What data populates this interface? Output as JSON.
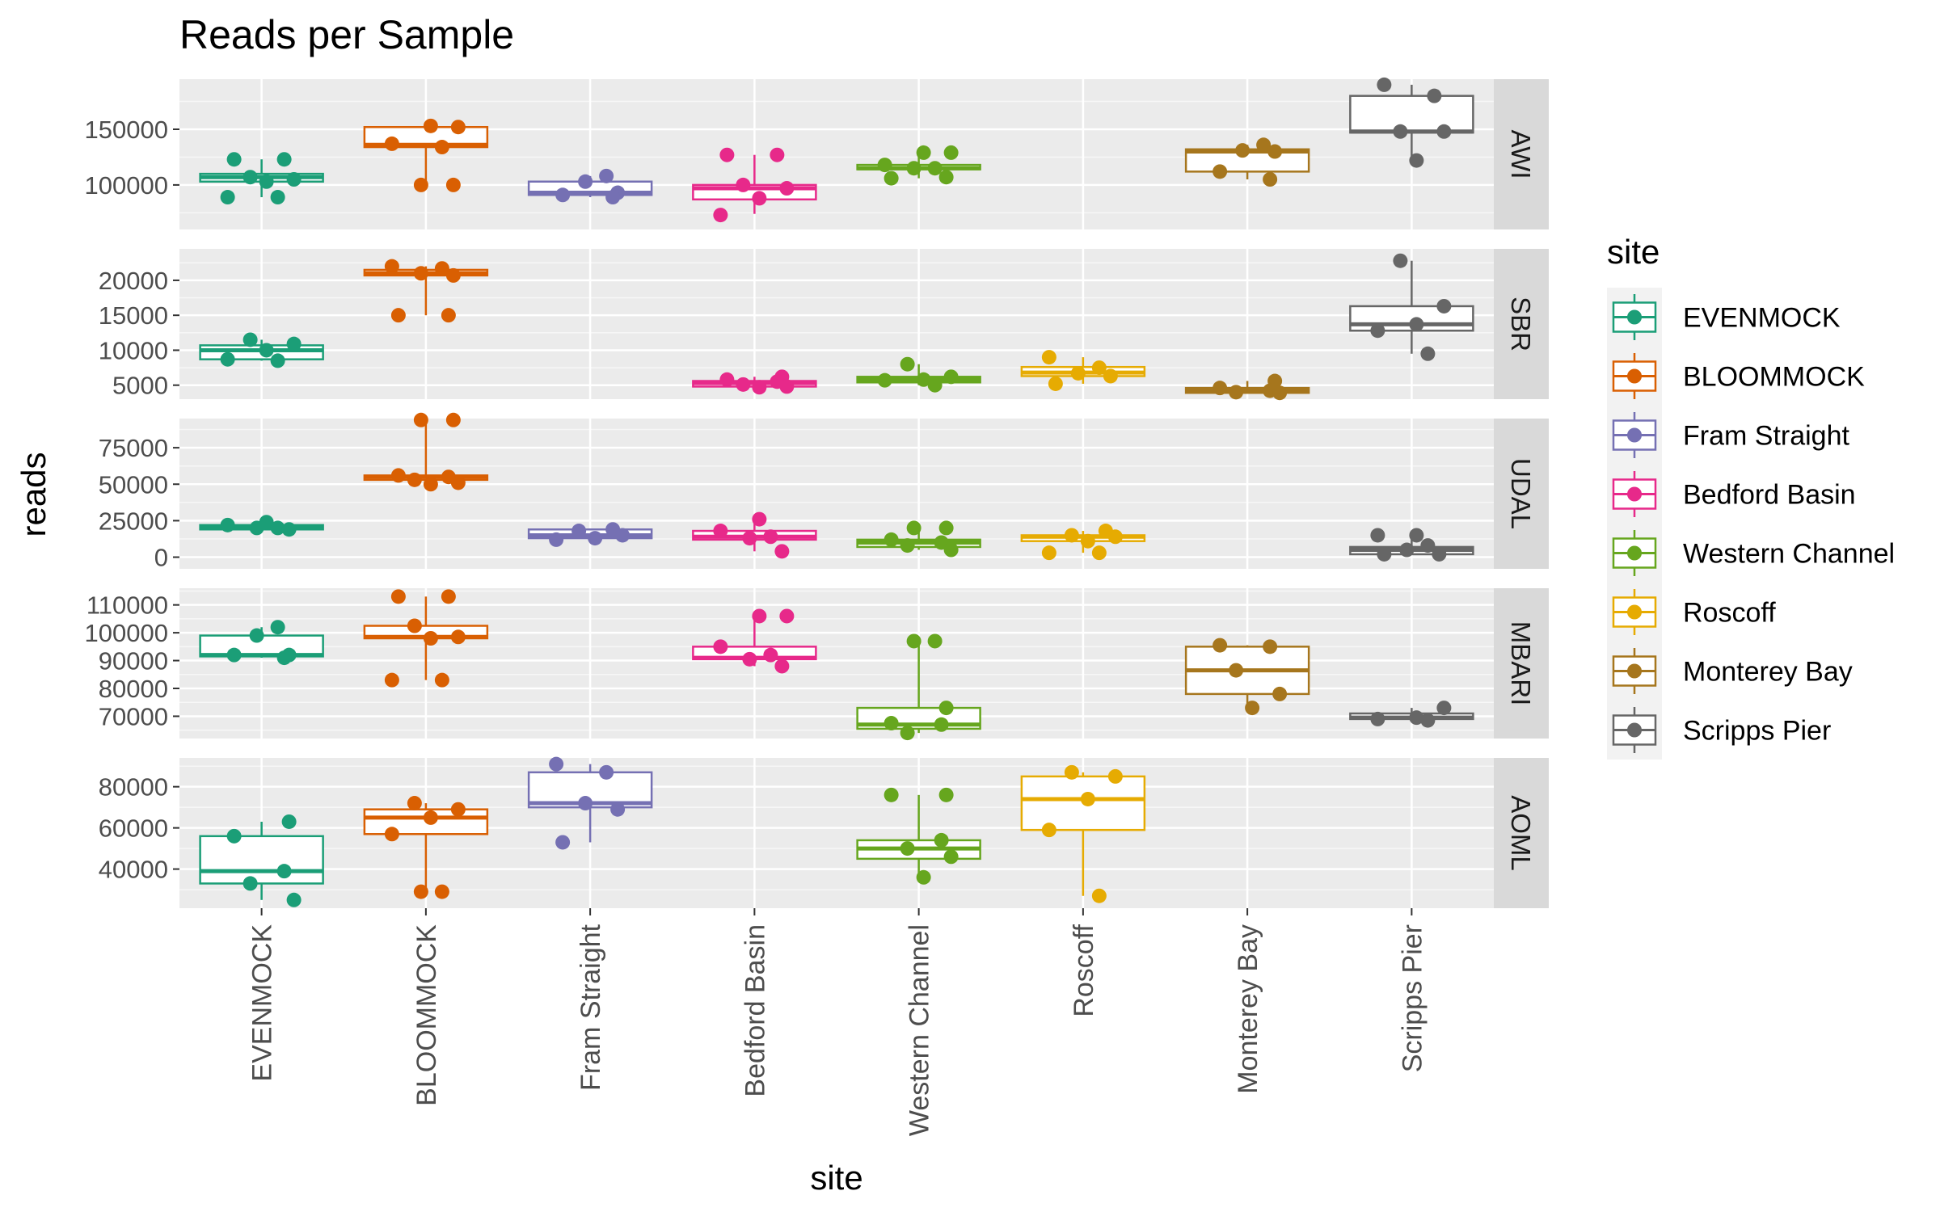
{
  "chart_data": {
    "type": "box",
    "title": "Reads per Sample",
    "xlabel": "site",
    "ylabel": "reads",
    "legend_title": "site",
    "legend_position": "right",
    "grid": true,
    "categories": [
      "EVENMOCK",
      "BLOOMMOCK",
      "Fram Straight",
      "Bedford Basin",
      "Western Channel",
      "Roscoff",
      "Monterey Bay",
      "Scripps Pier"
    ],
    "colors": {
      "EVENMOCK": "#1b9e77",
      "BLOOMMOCK": "#d95f02",
      "Fram Straight": "#7570b3",
      "Bedford Basin": "#e7298a",
      "Western Channel": "#66a61e",
      "Roscoff": "#e6ab02",
      "Monterey Bay": "#a6761d",
      "Scripps Pier": "#666666"
    },
    "facets": [
      {
        "name": "AWI",
        "ylim": [
          60000,
          195000
        ],
        "yticks": [
          100000,
          150000
        ],
        "ytick_labels": [
          "100000",
          "150000"
        ],
        "boxes": [
          {
            "site": "EVENMOCK",
            "q1": 103000,
            "median": 107000,
            "q3": 110000,
            "whisker_low": 89000,
            "whisker_high": 123000,
            "points": [
              123000,
              123000,
              107000,
              105000,
              103000,
              89000,
              89000
            ]
          },
          {
            "site": "BLOOMMOCK",
            "q1": 134000,
            "median": 136000,
            "q3": 152000,
            "whisker_low": 100000,
            "whisker_high": 153000,
            "points": [
              152000,
              153000,
              137000,
              134000,
              100000,
              100000
            ]
          },
          {
            "site": "Fram Straight",
            "q1": 91000,
            "median": 93000,
            "q3": 103000,
            "whisker_low": 89000,
            "whisker_high": 108000,
            "points": [
              108000,
              103000,
              93000,
              91000,
              89000
            ]
          },
          {
            "site": "Bedford Basin",
            "q1": 87000,
            "median": 97000,
            "q3": 100000,
            "whisker_low": 74000,
            "whisker_high": 127000,
            "points": [
              127000,
              127000,
              100000,
              97000,
              88000,
              73000
            ]
          },
          {
            "site": "Western Channel",
            "q1": 114000,
            "median": 115000,
            "q3": 118000,
            "whisker_low": 106000,
            "whisker_high": 129000,
            "points": [
              129000,
              129000,
              118000,
              115000,
              115000,
              107000,
              106000
            ]
          },
          {
            "site": "Monterey Bay",
            "q1": 112000,
            "median": 130000,
            "q3": 132000,
            "whisker_low": 105000,
            "whisker_high": 136000,
            "points": [
              136000,
              131000,
              130000,
              112000,
              105000
            ]
          },
          {
            "site": "Scripps Pier",
            "q1": 147000,
            "median": 148000,
            "q3": 180000,
            "whisker_low": 122000,
            "whisker_high": 190000,
            "points": [
              190000,
              180000,
              148000,
              148000,
              122000
            ]
          }
        ]
      },
      {
        "name": "SBR",
        "ylim": [
          3000,
          24500
        ],
        "yticks": [
          5000,
          10000,
          15000,
          20000
        ],
        "ytick_labels": [
          "5000",
          "10000",
          "15000",
          "20000"
        ],
        "boxes": [
          {
            "site": "EVENMOCK",
            "q1": 8700,
            "median": 10000,
            "q3": 10700,
            "whisker_low": 8500,
            "whisker_high": 11500,
            "points": [
              11500,
              10900,
              10000,
              8700,
              8500
            ]
          },
          {
            "site": "BLOOMMOCK",
            "q1": 20700,
            "median": 21000,
            "q3": 21500,
            "whisker_low": 15000,
            "whisker_high": 22000,
            "points": [
              22000,
              21700,
              21000,
              20700,
              15000,
              15000
            ]
          },
          {
            "site": "Bedford Basin",
            "q1": 4800,
            "median": 5300,
            "q3": 5600,
            "whisker_low": 4700,
            "whisker_high": 6200,
            "points": [
              6200,
              5800,
              5500,
              5100,
              4800,
              4700
            ]
          },
          {
            "site": "Western Channel",
            "q1": 5400,
            "median": 5800,
            "q3": 6200,
            "whisker_low": 5000,
            "whisker_high": 8000,
            "points": [
              8000,
              6200,
              5800,
              5700,
              5000
            ]
          },
          {
            "site": "Roscoff",
            "q1": 6300,
            "median": 6800,
            "q3": 7600,
            "whisker_low": 5200,
            "whisker_high": 9000,
            "points": [
              9000,
              7500,
              6700,
              6300,
              5200
            ]
          },
          {
            "site": "Monterey Bay",
            "q1": 3900,
            "median": 4200,
            "q3": 4600,
            "whisker_low": 3900,
            "whisker_high": 5600,
            "points": [
              5600,
              4600,
              4200,
              4000,
              3900
            ]
          },
          {
            "site": "Scripps Pier",
            "q1": 12800,
            "median": 13700,
            "q3": 16300,
            "whisker_low": 9500,
            "whisker_high": 22800,
            "points": [
              22800,
              16300,
              13700,
              12800,
              9500
            ]
          }
        ]
      },
      {
        "name": "UDAL",
        "ylim": [
          -8000,
          95000
        ],
        "yticks": [
          0,
          25000,
          50000,
          75000
        ],
        "ytick_labels": [
          "0",
          "25000",
          "50000",
          "75000"
        ],
        "boxes": [
          {
            "site": "EVENMOCK",
            "q1": 19000,
            "median": 20000,
            "q3": 22000,
            "whisker_low": 19000,
            "whisker_high": 24000,
            "points": [
              24000,
              22000,
              20000,
              20000,
              19000
            ]
          },
          {
            "site": "BLOOMMOCK",
            "q1": 53000,
            "median": 55000,
            "q3": 56000,
            "whisker_low": 50000,
            "whisker_high": 94000,
            "points": [
              94000,
              94000,
              56000,
              55000,
              53000,
              51000,
              50000
            ]
          },
          {
            "site": "Fram Straight",
            "q1": 13000,
            "median": 15000,
            "q3": 19000,
            "whisker_low": 12000,
            "whisker_high": 19000,
            "points": [
              19000,
              18000,
              15000,
              13000,
              12000
            ]
          },
          {
            "site": "Bedford Basin",
            "q1": 12000,
            "median": 14000,
            "q3": 18000,
            "whisker_low": 4000,
            "whisker_high": 26000,
            "points": [
              26000,
              18000,
              14000,
              13000,
              4000
            ]
          },
          {
            "site": "Western Channel",
            "q1": 7000,
            "median": 10000,
            "q3": 12000,
            "whisker_low": 5000,
            "whisker_high": 20000,
            "points": [
              20000,
              20000,
              12000,
              10000,
              8000,
              5000
            ]
          },
          {
            "site": "Roscoff",
            "q1": 11000,
            "median": 14000,
            "q3": 15000,
            "whisker_low": 3000,
            "whisker_high": 18000,
            "points": [
              18000,
              15000,
              14000,
              11000,
              3000,
              3000
            ]
          },
          {
            "site": "Scripps Pier",
            "q1": 2000,
            "median": 5000,
            "q3": 7000,
            "whisker_low": 2000,
            "whisker_high": 15000,
            "points": [
              15000,
              15000,
              8000,
              5000,
              2000,
              2000
            ]
          }
        ]
      },
      {
        "name": "MBARI",
        "ylim": [
          62000,
          116000
        ],
        "yticks": [
          70000,
          80000,
          90000,
          100000,
          110000
        ],
        "ytick_labels": [
          "70000",
          "80000",
          "90000",
          "100000",
          "110000"
        ],
        "boxes": [
          {
            "site": "EVENMOCK",
            "q1": 91500,
            "median": 92000,
            "q3": 99000,
            "whisker_low": 91000,
            "whisker_high": 102000,
            "points": [
              102000,
              99000,
              92000,
              92000,
              91000
            ]
          },
          {
            "site": "BLOOMMOCK",
            "q1": 98000,
            "median": 98500,
            "q3": 102500,
            "whisker_low": 83000,
            "whisker_high": 113000,
            "points": [
              113000,
              113000,
              102500,
              98500,
              98000,
              83000,
              83000
            ]
          },
          {
            "site": "Bedford Basin",
            "q1": 90500,
            "median": 91000,
            "q3": 95000,
            "whisker_low": 88000,
            "whisker_high": 106000,
            "points": [
              106000,
              106000,
              95000,
              92000,
              90500,
              88000
            ]
          },
          {
            "site": "Western Channel",
            "q1": 65500,
            "median": 67000,
            "q3": 73000,
            "whisker_low": 64000,
            "whisker_high": 97000,
            "points": [
              97000,
              97000,
              73000,
              67500,
              67000,
              64000
            ]
          },
          {
            "site": "Monterey Bay",
            "q1": 78000,
            "median": 86500,
            "q3": 95000,
            "whisker_low": 73000,
            "whisker_high": 95500,
            "points": [
              95500,
              95000,
              86500,
              78000,
              73000
            ]
          },
          {
            "site": "Scripps Pier",
            "q1": 69000,
            "median": 69500,
            "q3": 71000,
            "whisker_low": 68500,
            "whisker_high": 73000,
            "points": [
              73000,
              69500,
              69000,
              68500
            ]
          }
        ]
      },
      {
        "name": "AOML",
        "ylim": [
          21000,
          94000
        ],
        "yticks": [
          40000,
          60000,
          80000
        ],
        "ytick_labels": [
          "40000",
          "60000",
          "80000"
        ],
        "boxes": [
          {
            "site": "EVENMOCK",
            "q1": 33000,
            "median": 39000,
            "q3": 56000,
            "whisker_low": 25000,
            "whisker_high": 63000,
            "points": [
              63000,
              56000,
              39000,
              33000,
              25000
            ]
          },
          {
            "site": "BLOOMMOCK",
            "q1": 57000,
            "median": 65000,
            "q3": 69000,
            "whisker_low": 29000,
            "whisker_high": 72000,
            "points": [
              72000,
              69000,
              65000,
              57000,
              29000,
              29000
            ]
          },
          {
            "site": "Fram Straight",
            "q1": 70000,
            "median": 72000,
            "q3": 87000,
            "whisker_low": 53000,
            "whisker_high": 91000,
            "points": [
              91000,
              87000,
              72000,
              69000,
              53000
            ]
          },
          {
            "site": "Western Channel",
            "q1": 45000,
            "median": 50000,
            "q3": 54000,
            "whisker_low": 36000,
            "whisker_high": 76000,
            "points": [
              76000,
              76000,
              54000,
              50000,
              46000,
              36000
            ]
          },
          {
            "site": "Roscoff",
            "q1": 59000,
            "median": 74000,
            "q3": 85000,
            "whisker_low": 27000,
            "whisker_high": 87000,
            "points": [
              87000,
              85000,
              74000,
              59000,
              27000
            ]
          }
        ]
      }
    ]
  }
}
